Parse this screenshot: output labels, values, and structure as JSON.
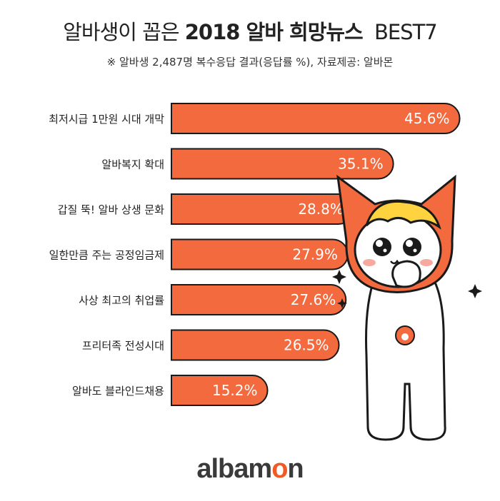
{
  "title": {
    "part1": "알바생이 꼽은",
    "part2": "2018 알바 희망뉴스",
    "part3": "BEST7"
  },
  "subtitle": "※ 알바생 2,487명 복수응답 결과(응답률 %),  자료제공: 알바몬",
  "colors": {
    "bar": "#f26a3d",
    "bar_stroke": "#1a1a1a",
    "value_text": "#ffffff",
    "label_text": "#222222",
    "accent": "#f15a24"
  },
  "chart_data": {
    "type": "bar",
    "orientation": "horizontal",
    "categories": [
      "최저시급 1만원 시대 개막",
      "알바복지 확대",
      "갑질 뚝! 알바 상생 문화",
      "일한만큼 주는 공정임금제",
      "사상 최고의 취업률",
      "프리터족 전성시대",
      "알바도 블라인드채용"
    ],
    "values": [
      45.6,
      35.1,
      28.8,
      27.9,
      27.6,
      26.5,
      15.2
    ],
    "value_labels": [
      "45.6%",
      "35.1%",
      "28.8%",
      "27.9%",
      "27.6%",
      "26.5%",
      "15.2%"
    ],
    "xlim": [
      0,
      50
    ],
    "grid": false,
    "legend": "none"
  },
  "logo": {
    "part1": "albam",
    "part2": "o",
    "part3": "n"
  },
  "mascot_icon": "albamon-cat-mascot-icon"
}
